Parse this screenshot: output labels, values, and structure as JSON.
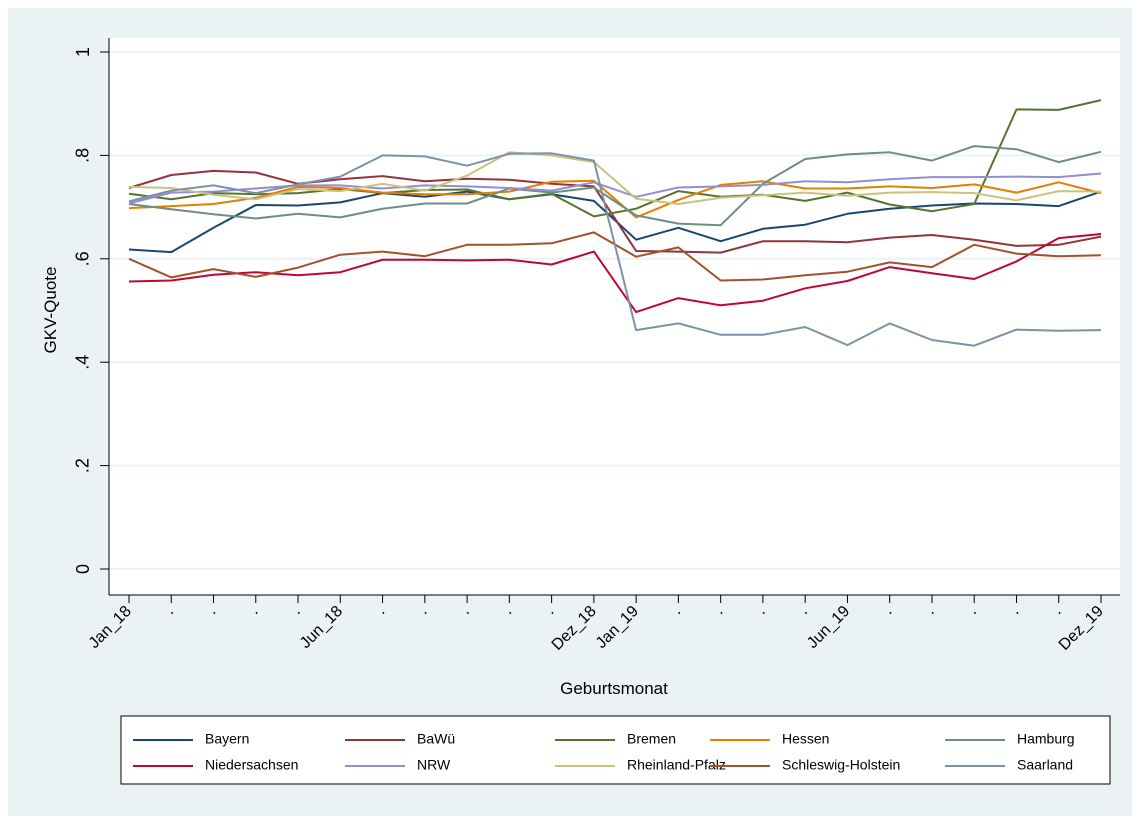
{
  "chart_data": {
    "type": "line",
    "title": "",
    "xlabel": "Geburtsmonat",
    "ylabel": "GKV-Quote",
    "ylim": [
      0,
      1
    ],
    "yticks": [
      {
        "value": 0,
        "label": "0"
      },
      {
        "value": 0.2,
        "label": ".2"
      },
      {
        "value": 0.4,
        "label": ".4"
      },
      {
        "value": 0.6,
        "label": ".6"
      },
      {
        "value": 0.8,
        "label": ".8"
      },
      {
        "value": 1,
        "label": "1"
      }
    ],
    "xticklabels": [
      "Jan_18",
      ".",
      ".",
      ".",
      ".",
      "Jun_18",
      ".",
      ".",
      ".",
      ".",
      ".",
      "Dez_18",
      "Jan_19",
      ".",
      ".",
      ".",
      ".",
      "Jun_19",
      ".",
      ".",
      ".",
      ".",
      ".",
      "Dez_19"
    ],
    "grid": true,
    "legend_position": "bottom",
    "colors": {
      "background": "#eaf2f3",
      "plot_background": "#ffffff",
      "gridline": "#eaf2f3"
    },
    "series": [
      {
        "name": "Bayern",
        "color": "#1a476f",
        "values": [
          0.618,
          0.613,
          0.66,
          0.704,
          0.703,
          0.709,
          0.727,
          0.72,
          0.73,
          0.715,
          0.725,
          0.712,
          0.637,
          0.66,
          0.634,
          0.658,
          0.666,
          0.687,
          0.697,
          0.703,
          0.707,
          0.706,
          0.702,
          0.73
        ]
      },
      {
        "name": "BaWü",
        "color": "#90353b",
        "values": [
          0.737,
          0.762,
          0.77,
          0.767,
          0.745,
          0.754,
          0.76,
          0.75,
          0.755,
          0.753,
          0.745,
          0.74,
          0.615,
          0.614,
          0.612,
          0.634,
          0.634,
          0.632,
          0.641,
          0.646,
          0.637,
          0.625,
          0.627,
          0.643
        ]
      },
      {
        "name": "Bremen",
        "color": "#55752f",
        "values": [
          0.726,
          0.715,
          0.727,
          0.725,
          0.727,
          0.735,
          0.727,
          0.733,
          0.734,
          0.715,
          0.726,
          0.682,
          0.697,
          0.731,
          0.72,
          0.724,
          0.712,
          0.728,
          0.705,
          0.692,
          0.706,
          0.889,
          0.888,
          0.907
        ]
      },
      {
        "name": "Hessen",
        "color": "#e37e00",
        "values": [
          0.698,
          0.702,
          0.706,
          0.718,
          0.739,
          0.737,
          0.728,
          0.725,
          0.725,
          0.73,
          0.749,
          0.751,
          0.68,
          0.714,
          0.743,
          0.75,
          0.736,
          0.736,
          0.74,
          0.737,
          0.744,
          0.728,
          0.748,
          0.727
        ]
      },
      {
        "name": "Hamburg",
        "color": "#6e8e84",
        "values": [
          0.706,
          0.696,
          0.686,
          0.678,
          0.687,
          0.68,
          0.697,
          0.707,
          0.707,
          0.736,
          0.728,
          0.738,
          0.684,
          0.668,
          0.665,
          0.745,
          0.793,
          0.802,
          0.806,
          0.79,
          0.818,
          0.812,
          0.787,
          0.807
        ]
      },
      {
        "name": "Niedersachsen",
        "color": "#c10534",
        "values": [
          0.556,
          0.558,
          0.569,
          0.574,
          0.568,
          0.574,
          0.598,
          0.598,
          0.597,
          0.598,
          0.589,
          0.614,
          0.497,
          0.524,
          0.51,
          0.519,
          0.543,
          0.557,
          0.584,
          0.572,
          0.561,
          0.595,
          0.64,
          0.648
        ]
      },
      {
        "name": "NRW",
        "color": "#938dd2",
        "values": [
          0.707,
          0.728,
          0.73,
          0.736,
          0.742,
          0.742,
          0.736,
          0.742,
          0.74,
          0.737,
          0.732,
          0.748,
          0.72,
          0.738,
          0.74,
          0.743,
          0.75,
          0.748,
          0.754,
          0.758,
          0.758,
          0.759,
          0.758,
          0.765
        ]
      },
      {
        "name": "Rheinland-Pfalz",
        "color": "#cac27e",
        "values": [
          0.739,
          0.737,
          0.724,
          0.715,
          0.735,
          0.731,
          0.745,
          0.732,
          0.761,
          0.806,
          0.8,
          0.787,
          0.716,
          0.706,
          0.718,
          0.723,
          0.728,
          0.722,
          0.728,
          0.729,
          0.727,
          0.713,
          0.731,
          0.73
        ]
      },
      {
        "name": "Schleswig-Holstein",
        "color": "#a0522d",
        "values": [
          0.6,
          0.564,
          0.58,
          0.565,
          0.583,
          0.608,
          0.614,
          0.605,
          0.627,
          0.627,
          0.63,
          0.651,
          0.604,
          0.622,
          0.558,
          0.56,
          0.568,
          0.575,
          0.593,
          0.584,
          0.627,
          0.61,
          0.605,
          0.607
        ]
      },
      {
        "name": "Saarland",
        "color": "#7b92a8",
        "values": [
          0.711,
          0.732,
          0.742,
          0.727,
          0.744,
          0.759,
          0.8,
          0.798,
          0.78,
          0.803,
          0.804,
          0.79,
          0.462,
          0.475,
          0.453,
          0.453,
          0.468,
          0.433,
          0.475,
          0.443,
          0.432,
          0.463,
          0.461,
          0.462
        ]
      }
    ]
  }
}
